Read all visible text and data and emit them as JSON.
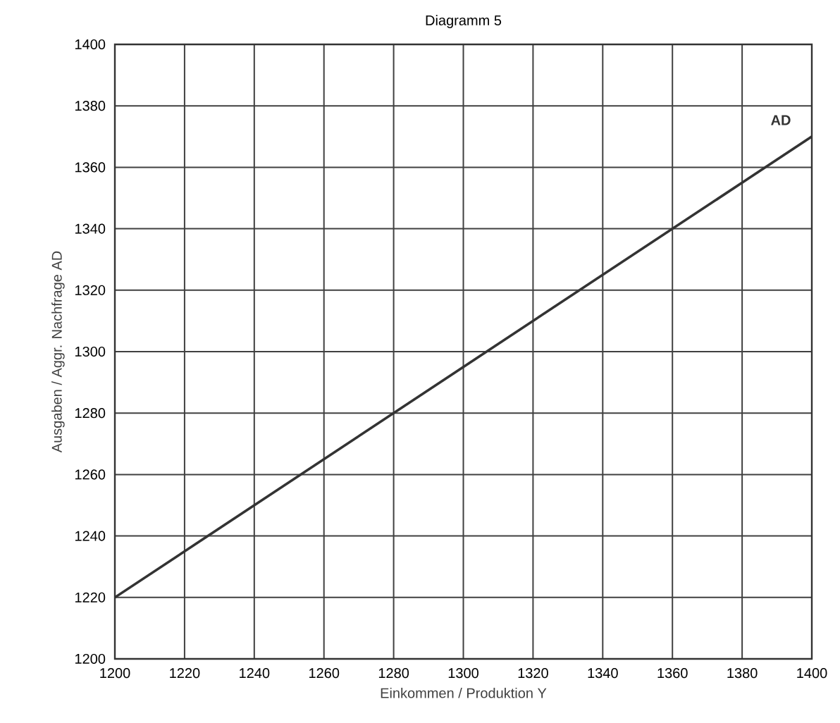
{
  "chart_data": {
    "type": "line",
    "title": "Diagramm 5",
    "xlabel": "Einkommen / Produktion Y",
    "ylabel": "Ausgaben / Aggr. Nachfrage AD",
    "x": [
      1200,
      1400
    ],
    "series": [
      {
        "name": "AD",
        "color": "#333333",
        "values": [
          1220,
          1370
        ]
      }
    ],
    "xlim": [
      1200,
      1400
    ],
    "ylim": [
      1200,
      1400
    ],
    "xticks": [
      1200,
      1220,
      1240,
      1260,
      1280,
      1300,
      1320,
      1340,
      1360,
      1380,
      1400
    ],
    "yticks": [
      1200,
      1220,
      1240,
      1260,
      1280,
      1300,
      1320,
      1340,
      1360,
      1380,
      1400
    ],
    "grid": true,
    "marker": "none",
    "line_style": "solid"
  }
}
